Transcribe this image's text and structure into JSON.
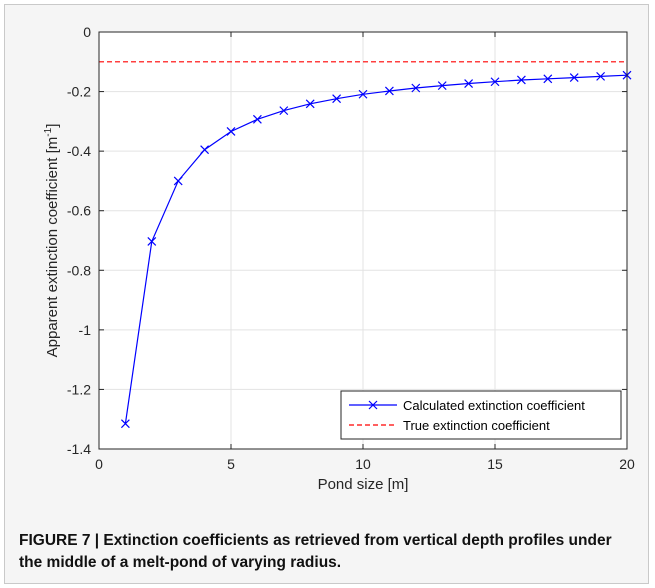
{
  "chart_data": {
    "type": "line",
    "xlabel": "Pond size [m]",
    "ylabel": "Apparent extinction coefficient [m",
    "ylabel_sup": "-1",
    "ylabel_end": "]",
    "xlim": [
      0,
      20
    ],
    "ylim": [
      -1.4,
      0
    ],
    "xticks": [
      0,
      5,
      10,
      15,
      20
    ],
    "yticks": [
      0,
      -0.2,
      -0.4,
      -0.6,
      -0.8,
      -1,
      -1.2,
      -1.4
    ],
    "xtick_labels": [
      "0",
      "5",
      "10",
      "15",
      "20"
    ],
    "ytick_labels": [
      "0",
      "-0.2",
      "-0.4",
      "-0.6",
      "-0.8",
      "-1",
      "-1.2",
      "-1.4"
    ],
    "grid": true,
    "legend_position": "bottom-right",
    "series": [
      {
        "name": "Calculated extinction coefficient",
        "color": "#0000ff",
        "marker": "x",
        "line": "solid",
        "x": [
          1,
          2,
          3,
          4,
          5,
          6,
          7,
          8,
          9,
          10,
          11,
          12,
          13,
          14,
          15,
          16,
          17,
          18,
          19,
          20
        ],
        "y": [
          -1.315,
          -0.703,
          -0.5,
          -0.395,
          -0.334,
          -0.293,
          -0.264,
          -0.241,
          -0.224,
          -0.209,
          -0.198,
          -0.188,
          -0.18,
          -0.173,
          -0.167,
          -0.161,
          -0.157,
          -0.153,
          -0.149,
          -0.145
        ]
      },
      {
        "name": "True extinction coefficient",
        "color": "#ff0000",
        "marker": "none",
        "line": "dashed",
        "x": [
          0,
          20
        ],
        "y": [
          -0.1,
          -0.1
        ]
      }
    ]
  },
  "caption": "FIGURE 7 | Extinction coefficients as retrieved from vertical depth profiles under the middle of a melt-pond of varying radius."
}
